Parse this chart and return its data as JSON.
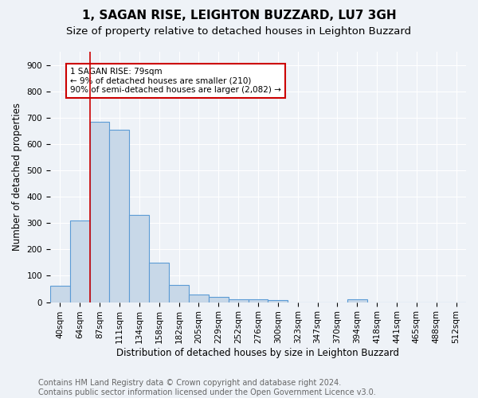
{
  "title": "1, SAGAN RISE, LEIGHTON BUZZARD, LU7 3GH",
  "subtitle": "Size of property relative to detached houses in Leighton Buzzard",
  "xlabel": "Distribution of detached houses by size in Leighton Buzzard",
  "ylabel": "Number of detached properties",
  "bar_values": [
    63,
    310,
    684,
    655,
    330,
    150,
    65,
    30,
    20,
    12,
    12,
    8,
    0,
    0,
    0,
    10,
    0,
    0,
    0,
    0,
    0
  ],
  "bar_labels": [
    "40sqm",
    "64sqm",
    "87sqm",
    "111sqm",
    "134sqm",
    "158sqm",
    "182sqm",
    "205sqm",
    "229sqm",
    "252sqm",
    "276sqm",
    "300sqm",
    "323sqm",
    "347sqm",
    "370sqm",
    "394sqm",
    "418sqm",
    "441sqm",
    "465sqm",
    "488sqm",
    "512sqm"
  ],
  "bar_color": "#c8d8e8",
  "bar_edge_color": "#5b9bd5",
  "bar_edge_width": 0.8,
  "vline_x_idx": 2,
  "vline_color": "#cc0000",
  "annotation_text": "1 SAGAN RISE: 79sqm\n← 9% of detached houses are smaller (210)\n90% of semi-detached houses are larger (2,082) →",
  "annotation_box_color": "#ffffff",
  "annotation_box_edge": "#cc0000",
  "ylim": [
    0,
    950
  ],
  "yticks": [
    0,
    100,
    200,
    300,
    400,
    500,
    600,
    700,
    800,
    900
  ],
  "footer_text": "Contains HM Land Registry data © Crown copyright and database right 2024.\nContains public sector information licensed under the Open Government Licence v3.0.",
  "background_color": "#eef2f7",
  "plot_bg_color": "#eef2f7",
  "grid_color": "#ffffff",
  "title_fontsize": 11,
  "subtitle_fontsize": 9.5,
  "axis_label_fontsize": 8.5,
  "tick_fontsize": 7.5,
  "footer_fontsize": 7
}
